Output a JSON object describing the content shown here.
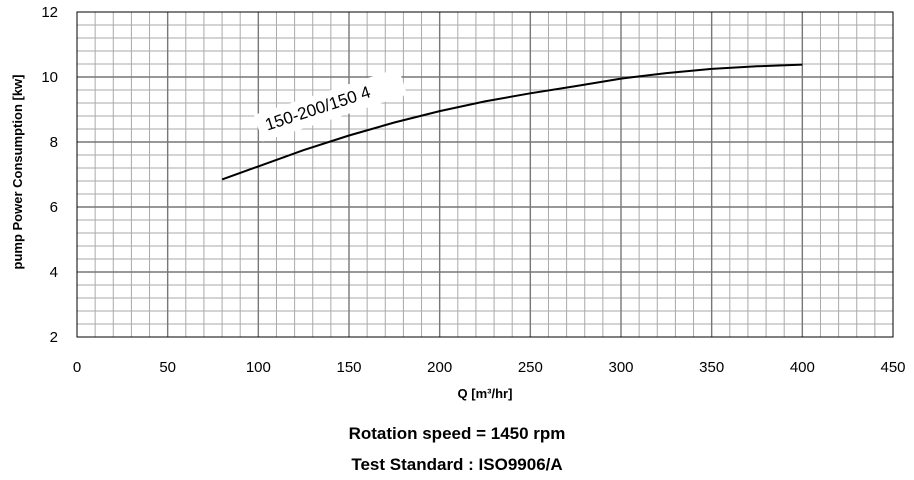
{
  "chart_data": {
    "type": "line",
    "title": "",
    "xlabel": "Q [m³/hr]",
    "ylabel": "pump Power Consumption  [kw]",
    "xlim": [
      0,
      450
    ],
    "ylim": [
      2,
      12
    ],
    "x_ticks": [
      "0",
      "50",
      "100",
      "150",
      "200",
      "250",
      "300",
      "350",
      "400",
      "450"
    ],
    "y_ticks": [
      "2",
      "4",
      "6",
      "8",
      "10",
      "12"
    ],
    "grid": true,
    "series": [
      {
        "name": "150-200/150  4",
        "x": [
          80,
          100,
          125,
          150,
          175,
          200,
          225,
          250,
          275,
          300,
          325,
          350,
          375,
          400
        ],
        "y": [
          6.85,
          7.25,
          7.75,
          8.2,
          8.6,
          8.95,
          9.25,
          9.5,
          9.72,
          9.95,
          10.12,
          10.25,
          10.33,
          10.38
        ]
      }
    ]
  },
  "captions": {
    "rotation_speed": "Rotation speed = 1450 rpm",
    "test_standard": "Test Standard : ISO9906/A"
  }
}
